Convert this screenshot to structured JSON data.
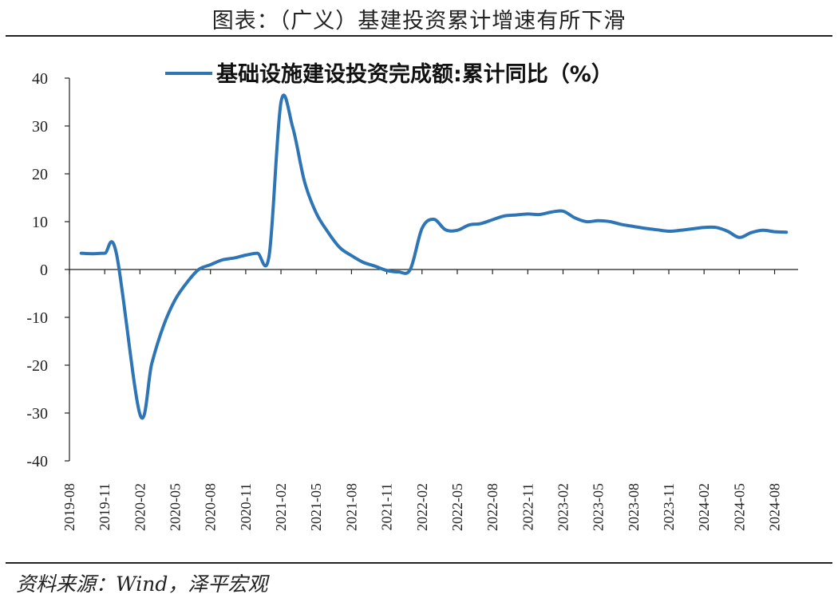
{
  "figure": {
    "title": "图表：（广义）基建投资累计增速有所下滑",
    "source": "资料来源：Wind，泽平宏观"
  },
  "colors": {
    "line": "#2E75B6",
    "axis": "#222222"
  },
  "chart_data": {
    "type": "line",
    "title": "",
    "xlabel": "",
    "ylabel": "",
    "ylim": [
      -40,
      40
    ],
    "yticks": [
      40,
      30,
      20,
      10,
      0,
      -10,
      -20,
      -30,
      -40
    ],
    "xticks": [
      "2019-08",
      "2019-11",
      "2020-02",
      "2020-05",
      "2020-08",
      "2020-11",
      "2021-02",
      "2021-05",
      "2021-08",
      "2021-11",
      "2022-02",
      "2022-05",
      "2022-08",
      "2022-11",
      "2023-02",
      "2023-05",
      "2023-08",
      "2023-11",
      "2024-02",
      "2024-05",
      "2024-08"
    ],
    "legend_position": "top",
    "grid": false,
    "series": [
      {
        "name": "基础设施建设投资完成额:累计同比（%）",
        "points": [
          [
            "2019-09",
            3.4
          ],
          [
            "2019-10",
            3.3
          ],
          [
            "2019-11",
            3.4
          ],
          [
            "2019-12",
            3.3
          ],
          [
            "2020-02",
            -30.3
          ],
          [
            "2020-03",
            -19.7
          ],
          [
            "2020-04",
            -11.8
          ],
          [
            "2020-05",
            -6.3
          ],
          [
            "2020-06",
            -2.7
          ],
          [
            "2020-07",
            0.0
          ],
          [
            "2020-08",
            1.0
          ],
          [
            "2020-09",
            2.0
          ],
          [
            "2020-10",
            2.4
          ],
          [
            "2020-11",
            3.0
          ],
          [
            "2020-12",
            3.4
          ],
          [
            "2021-01",
            3.0
          ],
          [
            "2021-02",
            35.0
          ],
          [
            "2021-03",
            29.7
          ],
          [
            "2021-04",
            18.4
          ],
          [
            "2021-05",
            11.8
          ],
          [
            "2021-06",
            7.8
          ],
          [
            "2021-07",
            4.6
          ],
          [
            "2021-08",
            2.9
          ],
          [
            "2021-09",
            1.5
          ],
          [
            "2021-10",
            0.7
          ],
          [
            "2021-11",
            -0.2
          ],
          [
            "2021-12",
            -0.5
          ],
          [
            "2022-01",
            0.0
          ],
          [
            "2022-02",
            8.6
          ],
          [
            "2022-03",
            10.5
          ],
          [
            "2022-04",
            8.3
          ],
          [
            "2022-05",
            8.2
          ],
          [
            "2022-06",
            9.3
          ],
          [
            "2022-07",
            9.6
          ],
          [
            "2022-08",
            10.4
          ],
          [
            "2022-09",
            11.2
          ],
          [
            "2022-10",
            11.4
          ],
          [
            "2022-11",
            11.6
          ],
          [
            "2022-12",
            11.5
          ],
          [
            "2023-01",
            12.0
          ],
          [
            "2023-02",
            12.2
          ],
          [
            "2023-03",
            10.8
          ],
          [
            "2023-04",
            10.0
          ],
          [
            "2023-05",
            10.2
          ],
          [
            "2023-06",
            10.0
          ],
          [
            "2023-07",
            9.4
          ],
          [
            "2023-08",
            9.0
          ],
          [
            "2023-09",
            8.6
          ],
          [
            "2023-10",
            8.3
          ],
          [
            "2023-11",
            8.0
          ],
          [
            "2023-12",
            8.2
          ],
          [
            "2024-01",
            8.5
          ],
          [
            "2024-02",
            8.8
          ],
          [
            "2024-03",
            8.8
          ],
          [
            "2024-04",
            8.0
          ],
          [
            "2024-05",
            6.7
          ],
          [
            "2024-06",
            7.7
          ],
          [
            "2024-07",
            8.2
          ],
          [
            "2024-08",
            7.9
          ],
          [
            "2024-09",
            7.8
          ]
        ]
      }
    ]
  }
}
